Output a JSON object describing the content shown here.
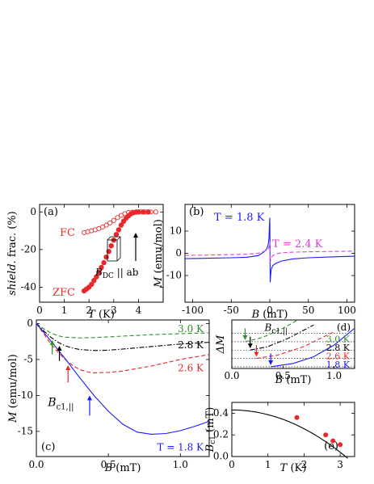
{
  "colors": {
    "red": "#e8282a",
    "blue": "#1a1aff",
    "green": "#2e8b2e",
    "black": "#000000",
    "magenta": "#e23be2"
  },
  "chart_data": [
    {
      "id": "a",
      "type": "scatter",
      "panel_label": "(a)",
      "xlabel": "T (K)",
      "ylabel": "shield. frac. (%)",
      "xlim": [
        0,
        5
      ],
      "ylim": [
        -48,
        4
      ],
      "xticks": [
        0,
        1,
        2,
        3,
        4
      ],
      "yticks": [
        0,
        -20,
        -40
      ],
      "series": [
        {
          "name": "FC",
          "marker": "open-circle",
          "color": "#e8282a",
          "x": [
            1.8,
            1.95,
            2.1,
            2.25,
            2.4,
            2.55,
            2.7,
            2.85,
            3.0,
            3.15,
            3.3,
            3.45,
            3.6,
            3.75,
            3.9,
            4.1,
            4.3,
            4.5,
            4.7
          ],
          "y": [
            -11,
            -10.5,
            -10,
            -9.5,
            -8.8,
            -8,
            -7,
            -5.8,
            -4.5,
            -3,
            -1.8,
            -0.9,
            -0.3,
            -0.1,
            0,
            0,
            0,
            0,
            0
          ]
        },
        {
          "name": "ZFC",
          "marker": "filled-circle",
          "color": "#e8282a",
          "x": [
            1.8,
            1.9,
            2.0,
            2.1,
            2.2,
            2.3,
            2.4,
            2.5,
            2.6,
            2.7,
            2.8,
            2.9,
            3.0,
            3.1,
            3.2,
            3.3,
            3.4,
            3.5,
            3.6,
            3.7,
            3.8,
            3.9,
            4.0,
            4.2,
            4.4
          ],
          "y": [
            -42,
            -41,
            -40,
            -38.5,
            -36.5,
            -34.5,
            -32,
            -29.5,
            -27,
            -24,
            -21,
            -18,
            -15,
            -12,
            -9.5,
            -7,
            -5,
            -3.3,
            -2,
            -1,
            -0.4,
            -0.1,
            0,
            0,
            0
          ]
        }
      ],
      "annotations": {
        "fc": "FC",
        "zfc": "ZFC",
        "field_main": "B",
        "field_sub": "DC",
        "field_rest": " || ab"
      }
    },
    {
      "id": "b",
      "type": "line",
      "panel_label": "(b)",
      "xlabel": "B (mT)",
      "ylabel": "M (emu/mol)",
      "xlim": [
        -110,
        110
      ],
      "ylim": [
        -22,
        22
      ],
      "xticks": [
        -100,
        -50,
        0,
        50,
        100
      ],
      "yticks": [
        -10,
        0,
        10
      ],
      "series": [
        {
          "name": "T = 1.8 K",
          "style": "solid",
          "color": "#1a1aff",
          "x": [
            -110,
            -80,
            -50,
            -30,
            -15,
            -8,
            -4,
            -2,
            -1,
            -0.5,
            0,
            0.5,
            1,
            2,
            4,
            8,
            15,
            30,
            50,
            80,
            110
          ],
          "y": [
            -2.4,
            -2.2,
            -2,
            -1.8,
            -1,
            0.5,
            2,
            4,
            7,
            12,
            16,
            -13,
            -10,
            -7,
            -5.5,
            -4.5,
            -3.5,
            -2.5,
            -2,
            -1.6,
            -1.3
          ]
        },
        {
          "name": "T = 2.4 K",
          "style": "dashed",
          "color": "#e23be2",
          "x": [
            -110,
            -80,
            -50,
            -30,
            -15,
            -8,
            -4,
            -2,
            -1,
            -0.5,
            0,
            0.5,
            1,
            2,
            4,
            8,
            15,
            30,
            50,
            80,
            110
          ],
          "y": [
            -0.9,
            -0.8,
            -0.6,
            -0.4,
            0,
            0.8,
            1.5,
            2,
            2.8,
            4,
            5,
            -4,
            -3,
            -2,
            -1,
            -0.3,
            0.2,
            0.5,
            0.7,
            0.85,
            1
          ]
        }
      ],
      "annotations": {
        "t1": "T = 1.8 K",
        "t2": "T = 2.4 K"
      }
    },
    {
      "id": "c",
      "type": "line",
      "panel_label": "(c)",
      "xlabel": "B (mT)",
      "ylabel": "M (emu/mol)",
      "xlim": [
        0,
        1.2
      ],
      "ylim": [
        -18.5,
        0.5
      ],
      "xticks": [
        0,
        0.5,
        1
      ],
      "xticklabels": [
        "0.0",
        "0.5",
        "1.0"
      ],
      "yticks": [
        0,
        -5,
        -10,
        -15
      ],
      "series": [
        {
          "name": "3.0 K",
          "style": "dashed",
          "color": "#2e8b2e",
          "x": [
            0,
            0.05,
            0.1,
            0.15,
            0.2,
            0.3,
            0.4,
            0.5,
            0.6,
            0.8,
            1.0,
            1.2
          ],
          "y": [
            0,
            -0.7,
            -1.3,
            -1.7,
            -1.9,
            -2.0,
            -1.95,
            -1.85,
            -1.75,
            -1.55,
            -1.4,
            -1.3
          ]
        },
        {
          "name": "2.8 K",
          "style": "dashdot",
          "color": "#000000",
          "x": [
            0,
            0.05,
            0.1,
            0.15,
            0.2,
            0.25,
            0.3,
            0.4,
            0.5,
            0.6,
            0.8,
            1.0,
            1.2
          ],
          "y": [
            0,
            -1.0,
            -1.9,
            -2.6,
            -3.1,
            -3.4,
            -3.6,
            -3.75,
            -3.7,
            -3.55,
            -3.2,
            -2.85,
            -2.6
          ]
        },
        {
          "name": "2.6 K",
          "style": "dashed",
          "color": "#e8282a",
          "x": [
            0,
            0.05,
            0.1,
            0.15,
            0.2,
            0.25,
            0.3,
            0.35,
            0.4,
            0.5,
            0.6,
            0.8,
            1.0,
            1.2
          ],
          "y": [
            0,
            -1.4,
            -2.8,
            -4.0,
            -5.0,
            -5.8,
            -6.4,
            -6.7,
            -6.85,
            -6.8,
            -6.6,
            -5.9,
            -5.0,
            -4.3
          ]
        },
        {
          "name": "T = 1.8 K",
          "style": "solid",
          "color": "#1a1aff",
          "x": [
            0,
            0.1,
            0.2,
            0.3,
            0.4,
            0.5,
            0.6,
            0.7,
            0.8,
            0.9,
            1.0,
            1.1,
            1.2
          ],
          "y": [
            0,
            -2.4,
            -4.9,
            -7.5,
            -10.0,
            -12.2,
            -14.0,
            -15.1,
            -15.4,
            -15.3,
            -14.9,
            -14.3,
            -13.6
          ]
        }
      ],
      "arrows": [
        {
          "x": 0.11,
          "color": "#2e8b2e",
          "y_from": -4.3,
          "y_to": -2.3
        },
        {
          "x": 0.16,
          "color": "#000000",
          "y_from": -5.2,
          "y_to": -3.1
        },
        {
          "x": 0.22,
          "color": "#e8282a",
          "y_from": -8.2,
          "y_to": -5.8
        },
        {
          "x": 0.37,
          "color": "#1a1aff",
          "y_from": -12.8,
          "y_to": -10.0
        }
      ],
      "annotations": {
        "k30": "3.0 K",
        "k28": "2.8 K",
        "k26": "2.6 K",
        "k18": "T = 1.8 K",
        "bc1_main": "B",
        "bc1_sub": "c1,||"
      }
    },
    {
      "id": "d",
      "type": "line",
      "panel_label": "(d)",
      "xlabel": "B (mT)",
      "ylabel": "ΔM",
      "xlim": [
        0,
        1.2
      ],
      "ylim": [
        -0.2,
        5.6
      ],
      "xticks": [
        0,
        0.5,
        1
      ],
      "xticklabels": [
        "0.0",
        "0.5",
        "1.0"
      ],
      "baselines": [
        4,
        3,
        2,
        1,
        0
      ],
      "series": [
        {
          "name": "3.0 K",
          "style": "dashed",
          "color": "#2e8b2e",
          "baseline": 3,
          "x": [
            0.13,
            0.3,
            0.5,
            0.7
          ],
          "y": [
            3,
            3.5,
            4.6,
            6
          ]
        },
        {
          "name": "2.8 K",
          "style": "dashdot",
          "color": "#000000",
          "baseline": 2,
          "x": [
            0.18,
            0.35,
            0.55,
            0.8
          ],
          "y": [
            2,
            2.4,
            3.4,
            5
          ]
        },
        {
          "name": "2.6 K",
          "style": "dashed",
          "color": "#e8282a",
          "baseline": 1,
          "x": [
            0.24,
            0.45,
            0.7,
            1.0
          ],
          "y": [
            1,
            1.4,
            2.4,
            4.2
          ]
        },
        {
          "name": "1.8 K",
          "style": "solid",
          "color": "#1a1aff",
          "baseline": 0,
          "x": [
            0.38,
            0.6,
            0.8,
            1.0,
            1.2
          ],
          "y": [
            0,
            0.4,
            1.2,
            2.6,
            4.6
          ]
        }
      ],
      "arrows": [
        {
          "x": 0.13,
          "color": "#2e8b2e",
          "y_from": 4.6,
          "y_to": 3.2
        },
        {
          "x": 0.18,
          "color": "#000000",
          "y_from": 3.6,
          "y_to": 2.2
        },
        {
          "x": 0.24,
          "color": "#e8282a",
          "y_from": 2.6,
          "y_to": 1.2
        },
        {
          "x": 0.38,
          "color": "#1a1aff",
          "y_from": 1.6,
          "y_to": 0.2
        }
      ],
      "annotations": {
        "k30": "3.0 K",
        "k28": "2.8 K",
        "k26": "2.6 K",
        "k18": "1.8 K",
        "bc1_main": "B",
        "bc1_sub": "c1,||"
      }
    },
    {
      "id": "e",
      "type": "scatter",
      "panel_label": "(e)",
      "xlabel": "T (K)",
      "ylabel": "B_c1 (mT)",
      "xlim": [
        0,
        3.4
      ],
      "ylim": [
        0,
        0.5
      ],
      "xticks": [
        0,
        1,
        2,
        3
      ],
      "yticks": [
        0,
        0.2,
        0.4
      ],
      "yticklabels": [
        "0.0",
        "0.2",
        "0.4"
      ],
      "series": [
        {
          "name": "data",
          "marker": "filled-circle",
          "color": "#e8282a",
          "x": [
            1.8,
            2.6,
            2.8,
            3.0
          ],
          "y": [
            0.36,
            0.2,
            0.145,
            0.11
          ]
        },
        {
          "name": "fit",
          "style": "solid",
          "color": "#000000",
          "Tc": 3.15,
          "B0": 0.43
        }
      ]
    }
  ]
}
